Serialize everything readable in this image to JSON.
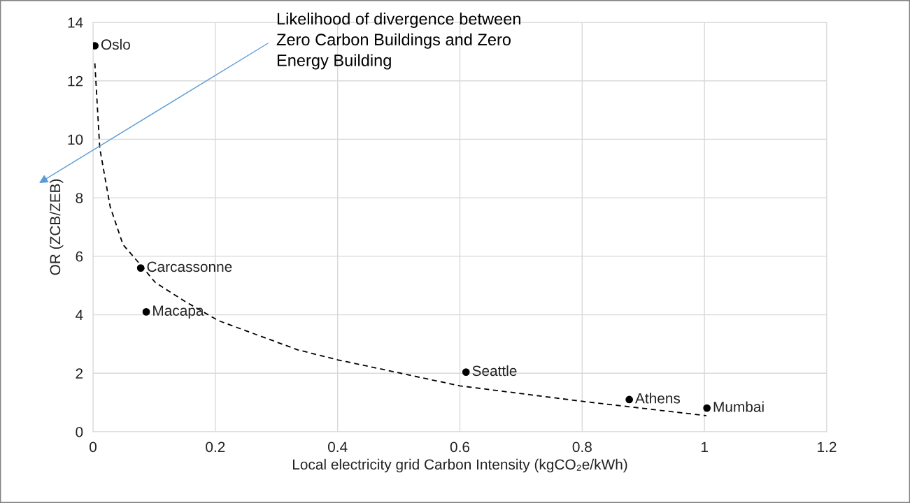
{
  "chart_data": {
    "type": "scatter",
    "xlabel": "Local electricity grid Carbon Intensity (kgCO₂e/kWh)",
    "ylabel": "OR (ZCB/ZEB)",
    "xlim": [
      0,
      1.2
    ],
    "xticks": [
      0,
      0.2,
      0.4,
      0.6,
      0.8,
      1,
      1.2
    ],
    "ylim": [
      0,
      14
    ],
    "yticks": [
      0,
      2,
      4,
      6,
      8,
      10,
      12,
      14
    ],
    "grid": true,
    "legend": false,
    "series": [
      {
        "color": "#000000",
        "marker": "circle",
        "x": [
          0.003,
          0.078,
          0.087,
          0.61,
          0.877,
          1.004
        ],
        "values": [
          13.2,
          5.6,
          4.1,
          2.04,
          1.1,
          0.81
        ]
      },
      {
        "type": "line",
        "color": "#000000",
        "line_style": "dashed",
        "marker": "none",
        "x": [
          0.003,
          0.011,
          0.028,
          0.049,
          0.078,
          0.102,
          0.151,
          0.205,
          0.335,
          0.4,
          0.6,
          0.8,
          1.003
        ],
        "values": [
          12.6,
          9.7,
          7.7,
          6.4,
          5.7,
          5.1,
          4.45,
          3.8,
          2.8,
          2.46,
          1.57,
          1.04,
          0.55
        ]
      }
    ],
    "annotations": [
      {
        "text": "Oslo",
        "x": 0.003,
        "y": 13.2
      },
      {
        "text": "Carcassonne",
        "x": 0.078,
        "y": 5.6
      },
      {
        "text": "Macapa",
        "x": 0.087,
        "y": 4.1
      },
      {
        "text": "Seattle",
        "x": 0.61,
        "y": 2.04
      },
      {
        "text": "Athens",
        "x": 0.877,
        "y": 1.1
      },
      {
        "text": "Mumbai",
        "x": 1.004,
        "y": 0.81
      },
      "Likelihood of divergence between\nZero Carbon Buildings and Zero\nEnergy Building"
    ]
  }
}
